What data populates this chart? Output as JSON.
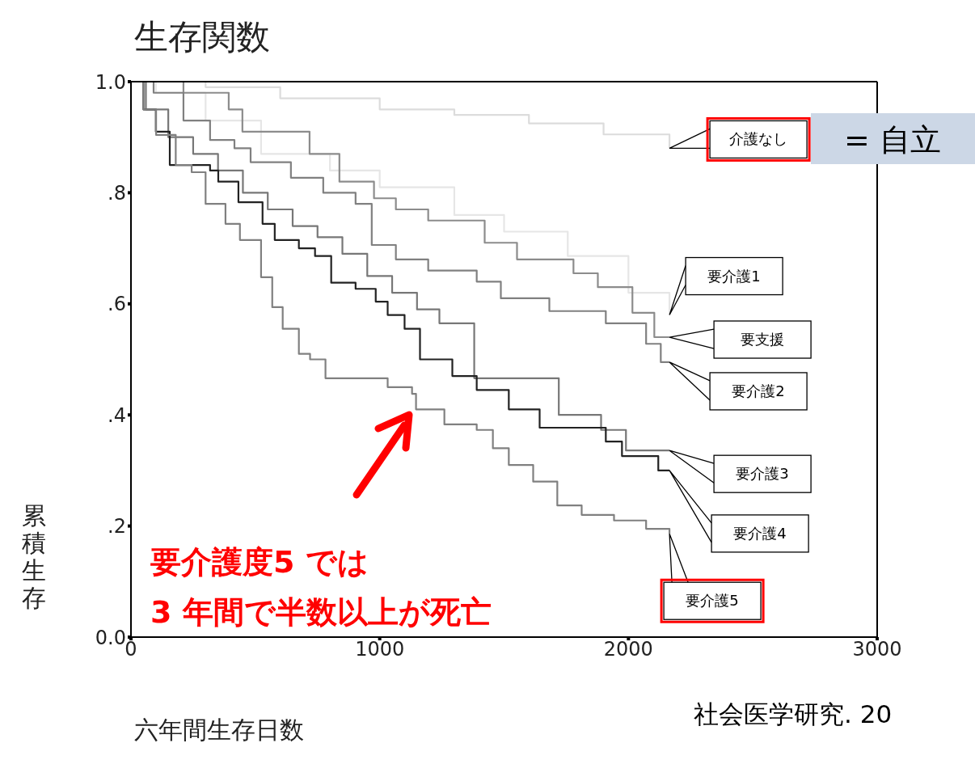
{
  "chart_data": {
    "type": "step",
    "title": "生存関数",
    "xlabel": "六年間生存日数",
    "ylabel": "累積生存",
    "xlim": [
      0,
      3000
    ],
    "xticks": [
      0,
      1000,
      2000,
      3000
    ],
    "ylim": [
      0,
      1
    ],
    "yticks": [
      {
        "value": 0,
        "label": "0.0"
      },
      {
        "value": 0.2,
        "label": ".2"
      },
      {
        "value": 0.4,
        "label": ".4"
      },
      {
        "value": 0.6,
        "label": ".6"
      },
      {
        "value": 0.8,
        "label": ".8"
      },
      {
        "value": 1,
        "label": "1.0"
      }
    ],
    "series": [
      {
        "name": "介護なし",
        "color": "#dcdcdc",
        "x": [
          0,
          300,
          600,
          1000,
          1300,
          1600,
          1900,
          2165
        ],
        "values": [
          1.0,
          0.99,
          0.97,
          0.95,
          0.94,
          0.925,
          0.905,
          0.88
        ]
      },
      {
        "name": "要介護1",
        "color": "#e6e6e6",
        "x": [
          0,
          100,
          300,
          523,
          800,
          1000,
          1300,
          1500,
          1756,
          2000,
          2165
        ],
        "values": [
          1.0,
          0.98,
          0.93,
          0.87,
          0.84,
          0.81,
          0.76,
          0.73,
          0.686,
          0.62,
          0.58
        ]
      },
      {
        "name": "要支援",
        "color": "#8c8c8c",
        "x": [
          0,
          211,
          393,
          448,
          666,
          718,
          838,
          977,
          1065,
          1195,
          1422,
          1552,
          1779,
          1877,
          2016,
          2104,
          2165
        ],
        "values": [
          1.0,
          0.98,
          0.95,
          0.91,
          0.91,
          0.87,
          0.82,
          0.79,
          0.77,
          0.75,
          0.71,
          0.68,
          0.655,
          0.63,
          0.584,
          0.54,
          0.54
        ]
      },
      {
        "name": "要介護2",
        "color": "#808080",
        "x": [
          0,
          91,
          211,
          318,
          416,
          481,
          643,
          773,
          903,
          968,
          1065,
          1195,
          1390,
          1487,
          1682,
          1909,
          2071,
          2130,
          2165
        ],
        "values": [
          1.0,
          0.98,
          0.93,
          0.895,
          0.88,
          0.855,
          0.827,
          0.8,
          0.78,
          0.706,
          0.68,
          0.66,
          0.64,
          0.61,
          0.587,
          0.565,
          0.528,
          0.495,
          0.495
        ]
      },
      {
        "name": "要介護3",
        "color": "#777777",
        "x": [
          0,
          60,
          150,
          250,
          350,
          450,
          550,
          650,
          750,
          850,
          950,
          1050,
          1150,
          1240,
          1380,
          1620,
          1720,
          1890,
          1990,
          2165
        ],
        "values": [
          1.0,
          0.95,
          0.9,
          0.87,
          0.84,
          0.8,
          0.77,
          0.74,
          0.72,
          0.69,
          0.65,
          0.62,
          0.59,
          0.565,
          0.466,
          0.466,
          0.4,
          0.373,
          0.336,
          0.336
        ]
      },
      {
        "name": "要介護4",
        "color": "#222222",
        "x": [
          0,
          50,
          100,
          156,
          188,
          318,
          351,
          432,
          529,
          578,
          675,
          740,
          805,
          903,
          984,
          1032,
          1100,
          1162,
          1292,
          1390,
          1519,
          1643,
          1844,
          1909,
          1974,
          2120,
          2165
        ],
        "values": [
          1.0,
          0.95,
          0.91,
          0.85,
          0.85,
          0.84,
          0.82,
          0.783,
          0.744,
          0.715,
          0.7,
          0.686,
          0.638,
          0.627,
          0.604,
          0.58,
          0.555,
          0.5,
          0.47,
          0.445,
          0.41,
          0.377,
          0.377,
          0.352,
          0.326,
          0.3,
          0.3
        ]
      },
      {
        "name": "要介護5",
        "color": "#808080",
        "x": [
          0,
          50,
          101,
          180,
          244,
          300,
          380,
          438,
          523,
          568,
          610,
          675,
          720,
          782,
          1032,
          1130,
          1146,
          1260,
          1390,
          1455,
          1519,
          1617,
          1714,
          1812,
          1942,
          2071,
          2165
        ],
        "values": [
          1.0,
          0.95,
          0.904,
          0.85,
          0.837,
          0.78,
          0.744,
          0.715,
          0.648,
          0.594,
          0.555,
          0.51,
          0.5,
          0.466,
          0.45,
          0.438,
          0.41,
          0.383,
          0.373,
          0.34,
          0.31,
          0.28,
          0.237,
          0.22,
          0.21,
          0.195,
          0.186
        ]
      }
    ],
    "annotations": [
      "= 自立",
      "要介護度5 では\n3 年間で半数以上が死亡",
      "社会医学研究. 20"
    ]
  }
}
